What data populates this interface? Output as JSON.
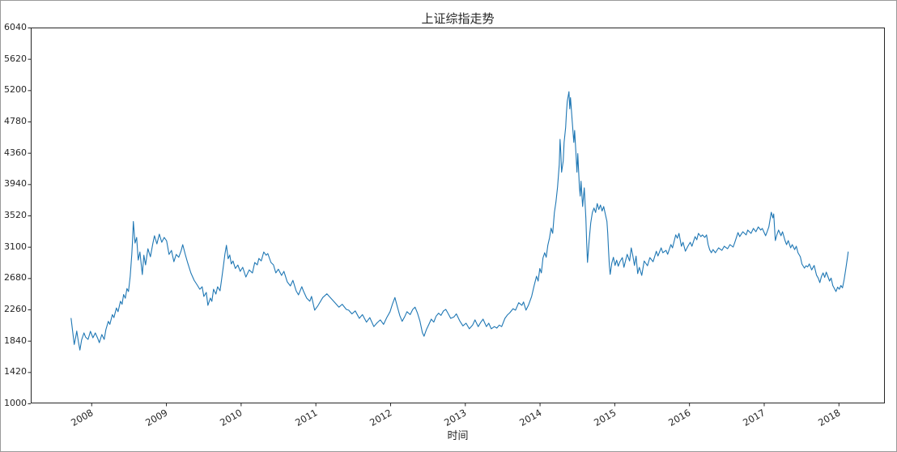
{
  "figure": {
    "title": "上证综指走势",
    "xlabel": "时间",
    "series_color": "#1f77b4",
    "axis_color": "#262626",
    "text_color": "#262626",
    "background_color": "#ffffff",
    "border_color": "#9a9a9a"
  },
  "chart_data": {
    "type": "line",
    "title": "上证综指走势",
    "xlabel": "时间",
    "ylabel": "",
    "grid": false,
    "legend": false,
    "xlim": [
      2007.19,
      2018.62
    ],
    "ylim": [
      1000,
      6040
    ],
    "x_ticks": [
      2008,
      2009,
      2010,
      2011,
      2012,
      2013,
      2014,
      2015,
      2016,
      2017,
      2018
    ],
    "x_tick_rotation_deg": 30,
    "y_ticks": [
      1000,
      1420,
      1840,
      2260,
      2680,
      3100,
      3520,
      3940,
      4360,
      4780,
      5200,
      5620,
      6040
    ],
    "points": [
      [
        2007.729,
        2140
      ],
      [
        2007.751,
        1960
      ],
      [
        2007.772,
        1790
      ],
      [
        2007.794,
        1900
      ],
      [
        2007.805,
        1970
      ],
      [
        2007.827,
        1830
      ],
      [
        2007.848,
        1715
      ],
      [
        2007.87,
        1850
      ],
      [
        2007.902,
        1945
      ],
      [
        2007.924,
        1890
      ],
      [
        2007.957,
        1858
      ],
      [
        2007.989,
        1967
      ],
      [
        2008.022,
        1880
      ],
      [
        2008.054,
        1945
      ],
      [
        2008.087,
        1870
      ],
      [
        2008.108,
        1815
      ],
      [
        2008.141,
        1923
      ],
      [
        2008.173,
        1858
      ],
      [
        2008.195,
        1990
      ],
      [
        2008.228,
        2100
      ],
      [
        2008.249,
        2060
      ],
      [
        2008.282,
        2190
      ],
      [
        2008.303,
        2150
      ],
      [
        2008.336,
        2280
      ],
      [
        2008.358,
        2230
      ],
      [
        2008.39,
        2370
      ],
      [
        2008.412,
        2330
      ],
      [
        2008.433,
        2460
      ],
      [
        2008.455,
        2410
      ],
      [
        2008.477,
        2540
      ],
      [
        2008.498,
        2500
      ],
      [
        2008.52,
        2700
      ],
      [
        2008.542,
        3000
      ],
      [
        2008.553,
        3200
      ],
      [
        2008.563,
        3440
      ],
      [
        2008.585,
        3150
      ],
      [
        2008.607,
        3226
      ],
      [
        2008.628,
        2922
      ],
      [
        2008.65,
        3030
      ],
      [
        2008.683,
        2727
      ],
      [
        2008.704,
        2987
      ],
      [
        2008.726,
        2857
      ],
      [
        2008.758,
        3074
      ],
      [
        2008.791,
        2966
      ],
      [
        2008.823,
        3139
      ],
      [
        2008.845,
        3248
      ],
      [
        2008.878,
        3139
      ],
      [
        2008.91,
        3270
      ],
      [
        2008.943,
        3161
      ],
      [
        2008.975,
        3226
      ],
      [
        2009.008,
        3180
      ],
      [
        2009.04,
        2998
      ],
      [
        2009.073,
        3052
      ],
      [
        2009.105,
        2900
      ],
      [
        2009.137,
        2998
      ],
      [
        2009.17,
        2960
      ],
      [
        2009.203,
        3050
      ],
      [
        2009.224,
        3129
      ],
      [
        2009.257,
        3000
      ],
      [
        2009.289,
        2889
      ],
      [
        2009.333,
        2749
      ],
      [
        2009.376,
        2651
      ],
      [
        2009.419,
        2586
      ],
      [
        2009.452,
        2531
      ],
      [
        2009.484,
        2564
      ],
      [
        2009.506,
        2434
      ],
      [
        2009.539,
        2488
      ],
      [
        2009.56,
        2314
      ],
      [
        2009.593,
        2412
      ],
      [
        2009.614,
        2369
      ],
      [
        2009.636,
        2531
      ],
      [
        2009.668,
        2466
      ],
      [
        2009.69,
        2564
      ],
      [
        2009.723,
        2510
      ],
      [
        2009.744,
        2660
      ],
      [
        2009.766,
        2830
      ],
      [
        2009.788,
        3000
      ],
      [
        2009.809,
        3120
      ],
      [
        2009.831,
        2940
      ],
      [
        2009.853,
        2990
      ],
      [
        2009.874,
        2870
      ],
      [
        2009.896,
        2910
      ],
      [
        2009.928,
        2810
      ],
      [
        2009.961,
        2855
      ],
      [
        2009.993,
        2770
      ],
      [
        2010.026,
        2825
      ],
      [
        2010.069,
        2694
      ],
      [
        2010.113,
        2790
      ],
      [
        2010.156,
        2749
      ],
      [
        2010.188,
        2890
      ],
      [
        2010.221,
        2857
      ],
      [
        2010.243,
        2944
      ],
      [
        2010.275,
        2911
      ],
      [
        2010.308,
        3030
      ],
      [
        2010.34,
        2987
      ],
      [
        2010.362,
        3010
      ],
      [
        2010.405,
        2890
      ],
      [
        2010.438,
        2857
      ],
      [
        2010.47,
        2750
      ],
      [
        2010.503,
        2800
      ],
      [
        2010.546,
        2716
      ],
      [
        2010.578,
        2770
      ],
      [
        2010.622,
        2630
      ],
      [
        2010.665,
        2575
      ],
      [
        2010.698,
        2650
      ],
      [
        2010.741,
        2510
      ],
      [
        2010.773,
        2455
      ],
      [
        2010.817,
        2565
      ],
      [
        2010.838,
        2510
      ],
      [
        2010.882,
        2412
      ],
      [
        2010.925,
        2370
      ],
      [
        2010.947,
        2435
      ],
      [
        2010.99,
        2250
      ],
      [
        2011.033,
        2310
      ],
      [
        2011.098,
        2420
      ],
      [
        2011.153,
        2470
      ],
      [
        2011.207,
        2410
      ],
      [
        2011.261,
        2350
      ],
      [
        2011.315,
        2290
      ],
      [
        2011.358,
        2330
      ],
      [
        2011.413,
        2260
      ],
      [
        2011.445,
        2250
      ],
      [
        2011.488,
        2200
      ],
      [
        2011.532,
        2240
      ],
      [
        2011.586,
        2140
      ],
      [
        2011.629,
        2190
      ],
      [
        2011.683,
        2090
      ],
      [
        2011.727,
        2150
      ],
      [
        2011.781,
        2030
      ],
      [
        2011.824,
        2080
      ],
      [
        2011.868,
        2120
      ],
      [
        2011.911,
        2060
      ],
      [
        2011.954,
        2150
      ],
      [
        2011.998,
        2230
      ],
      [
        2012.03,
        2330
      ],
      [
        2012.063,
        2420
      ],
      [
        2012.095,
        2300
      ],
      [
        2012.128,
        2180
      ],
      [
        2012.16,
        2100
      ],
      [
        2012.193,
        2160
      ],
      [
        2012.225,
        2230
      ],
      [
        2012.268,
        2190
      ],
      [
        2012.301,
        2260
      ],
      [
        2012.333,
        2290
      ],
      [
        2012.366,
        2210
      ],
      [
        2012.399,
        2100
      ],
      [
        2012.431,
        1950
      ],
      [
        2012.453,
        1900
      ],
      [
        2012.485,
        1990
      ],
      [
        2012.518,
        2060
      ],
      [
        2012.55,
        2130
      ],
      [
        2012.583,
        2090
      ],
      [
        2012.615,
        2170
      ],
      [
        2012.648,
        2210
      ],
      [
        2012.68,
        2180
      ],
      [
        2012.713,
        2240
      ],
      [
        2012.745,
        2260
      ],
      [
        2012.778,
        2200
      ],
      [
        2012.81,
        2140
      ],
      [
        2012.854,
        2160
      ],
      [
        2012.886,
        2200
      ],
      [
        2012.929,
        2110
      ],
      [
        2012.973,
        2040
      ],
      [
        2013.016,
        2075
      ],
      [
        2013.059,
        2000
      ],
      [
        2013.103,
        2050
      ],
      [
        2013.135,
        2120
      ],
      [
        2013.178,
        2030
      ],
      [
        2013.211,
        2085
      ],
      [
        2013.243,
        2130
      ],
      [
        2013.287,
        2030
      ],
      [
        2013.319,
        2075
      ],
      [
        2013.352,
        2000
      ],
      [
        2013.395,
        2030
      ],
      [
        2013.427,
        2010
      ],
      [
        2013.46,
        2050
      ],
      [
        2013.492,
        2030
      ],
      [
        2013.536,
        2140
      ],
      [
        2013.568,
        2185
      ],
      [
        2013.601,
        2215
      ],
      [
        2013.644,
        2270
      ],
      [
        2013.677,
        2250
      ],
      [
        2013.72,
        2350
      ],
      [
        2013.763,
        2315
      ],
      [
        2013.785,
        2360
      ],
      [
        2013.817,
        2250
      ],
      [
        2013.85,
        2315
      ],
      [
        2013.893,
        2435
      ],
      [
        2013.926,
        2575
      ],
      [
        2013.958,
        2705
      ],
      [
        2013.98,
        2640
      ],
      [
        2014.002,
        2810
      ],
      [
        2014.023,
        2750
      ],
      [
        2014.045,
        2950
      ],
      [
        2014.067,
        3020
      ],
      [
        2014.088,
        2960
      ],
      [
        2014.11,
        3120
      ],
      [
        2014.132,
        3220
      ],
      [
        2014.153,
        3350
      ],
      [
        2014.175,
        3280
      ],
      [
        2014.197,
        3560
      ],
      [
        2014.218,
        3700
      ],
      [
        2014.24,
        3900
      ],
      [
        2014.262,
        4200
      ],
      [
        2014.273,
        4540
      ],
      [
        2014.284,
        4350
      ],
      [
        2014.294,
        4100
      ],
      [
        2014.316,
        4250
      ],
      [
        2014.327,
        4500
      ],
      [
        2014.348,
        4700
      ],
      [
        2014.359,
        4900
      ],
      [
        2014.37,
        5050
      ],
      [
        2014.392,
        5180
      ],
      [
        2014.403,
        4950
      ],
      [
        2014.413,
        5100
      ],
      [
        2014.435,
        4800
      ],
      [
        2014.457,
        4500
      ],
      [
        2014.468,
        4660
      ],
      [
        2014.489,
        4300
      ],
      [
        2014.5,
        4100
      ],
      [
        2014.511,
        4350
      ],
      [
        2014.532,
        3900
      ],
      [
        2014.543,
        3780
      ],
      [
        2014.554,
        3980
      ],
      [
        2014.576,
        3640
      ],
      [
        2014.597,
        3890
      ],
      [
        2014.619,
        3480
      ],
      [
        2014.63,
        3150
      ],
      [
        2014.641,
        2890
      ],
      [
        2014.662,
        3180
      ],
      [
        2014.684,
        3420
      ],
      [
        2014.706,
        3560
      ],
      [
        2014.727,
        3620
      ],
      [
        2014.749,
        3560
      ],
      [
        2014.771,
        3680
      ],
      [
        2014.792,
        3600
      ],
      [
        2014.814,
        3660
      ],
      [
        2014.836,
        3580
      ],
      [
        2014.857,
        3640
      ],
      [
        2014.879,
        3540
      ],
      [
        2014.901,
        3440
      ],
      [
        2014.911,
        3280
      ],
      [
        2014.922,
        3050
      ],
      [
        2014.933,
        2850
      ],
      [
        2014.944,
        2730
      ],
      [
        2014.966,
        2880
      ],
      [
        2014.987,
        2960
      ],
      [
        2015.009,
        2850
      ],
      [
        2015.031,
        2920
      ],
      [
        2015.052,
        2840
      ],
      [
        2015.074,
        2900
      ],
      [
        2015.107,
        2955
      ],
      [
        2015.128,
        2825
      ],
      [
        2015.172,
        3000
      ],
      [
        2015.204,
        2910
      ],
      [
        2015.226,
        3085
      ],
      [
        2015.247,
        2980
      ],
      [
        2015.269,
        2850
      ],
      [
        2015.291,
        2975
      ],
      [
        2015.312,
        2740
      ],
      [
        2015.334,
        2825
      ],
      [
        2015.367,
        2716
      ],
      [
        2015.399,
        2910
      ],
      [
        2015.443,
        2846
      ],
      [
        2015.475,
        2955
      ],
      [
        2015.518,
        2900
      ],
      [
        2015.562,
        3040
      ],
      [
        2015.583,
        2977
      ],
      [
        2015.627,
        3085
      ],
      [
        2015.648,
        3020
      ],
      [
        2015.692,
        3052
      ],
      [
        2015.713,
        3000
      ],
      [
        2015.757,
        3130
      ],
      [
        2015.778,
        3085
      ],
      [
        2015.822,
        3260
      ],
      [
        2015.843,
        3215
      ],
      [
        2015.865,
        3280
      ],
      [
        2015.897,
        3107
      ],
      [
        2015.919,
        3161
      ],
      [
        2015.951,
        3041
      ],
      [
        2015.984,
        3107
      ],
      [
        2016.016,
        3161
      ],
      [
        2016.038,
        3107
      ],
      [
        2016.081,
        3237
      ],
      [
        2016.103,
        3194
      ],
      [
        2016.125,
        3280
      ],
      [
        2016.157,
        3237
      ],
      [
        2016.179,
        3259
      ],
      [
        2016.211,
        3226
      ],
      [
        2016.233,
        3259
      ],
      [
        2016.255,
        3130
      ],
      [
        2016.276,
        3060
      ],
      [
        2016.298,
        3020
      ],
      [
        2016.32,
        3063
      ],
      [
        2016.352,
        3020
      ],
      [
        2016.395,
        3085
      ],
      [
        2016.439,
        3052
      ],
      [
        2016.471,
        3107
      ],
      [
        2016.515,
        3074
      ],
      [
        2016.547,
        3129
      ],
      [
        2016.59,
        3096
      ],
      [
        2016.612,
        3161
      ],
      [
        2016.655,
        3291
      ],
      [
        2016.677,
        3237
      ],
      [
        2016.72,
        3302
      ],
      [
        2016.764,
        3259
      ],
      [
        2016.785,
        3324
      ],
      [
        2016.829,
        3280
      ],
      [
        2016.861,
        3346
      ],
      [
        2016.894,
        3302
      ],
      [
        2016.926,
        3367
      ],
      [
        2016.959,
        3324
      ],
      [
        2016.98,
        3346
      ],
      [
        2017.024,
        3248
      ],
      [
        2017.045,
        3302
      ],
      [
        2017.067,
        3367
      ],
      [
        2017.1,
        3563
      ],
      [
        2017.121,
        3487
      ],
      [
        2017.132,
        3541
      ],
      [
        2017.154,
        3183
      ],
      [
        2017.175,
        3259
      ],
      [
        2017.197,
        3324
      ],
      [
        2017.23,
        3248
      ],
      [
        2017.251,
        3302
      ],
      [
        2017.284,
        3183
      ],
      [
        2017.305,
        3129
      ],
      [
        2017.327,
        3183
      ],
      [
        2017.359,
        3085
      ],
      [
        2017.381,
        3129
      ],
      [
        2017.413,
        3063
      ],
      [
        2017.435,
        3107
      ],
      [
        2017.457,
        3020
      ],
      [
        2017.489,
        2966
      ],
      [
        2017.511,
        2868
      ],
      [
        2017.544,
        2814
      ],
      [
        2017.565,
        2846
      ],
      [
        2017.587,
        2830
      ],
      [
        2017.609,
        2870
      ],
      [
        2017.641,
        2790
      ],
      [
        2017.674,
        2850
      ],
      [
        2017.706,
        2720
      ],
      [
        2017.728,
        2680
      ],
      [
        2017.75,
        2620
      ],
      [
        2017.771,
        2700
      ],
      [
        2017.793,
        2750
      ],
      [
        2017.815,
        2690
      ],
      [
        2017.836,
        2760
      ],
      [
        2017.858,
        2700
      ],
      [
        2017.88,
        2640
      ],
      [
        2017.901,
        2680
      ],
      [
        2017.923,
        2580
      ],
      [
        2017.945,
        2540
      ],
      [
        2017.966,
        2500
      ],
      [
        2017.988,
        2560
      ],
      [
        2018.01,
        2530
      ],
      [
        2018.032,
        2580
      ],
      [
        2018.053,
        2550
      ],
      [
        2018.075,
        2660
      ],
      [
        2018.097,
        2800
      ],
      [
        2018.118,
        2950
      ],
      [
        2018.129,
        3030
      ]
    ]
  }
}
